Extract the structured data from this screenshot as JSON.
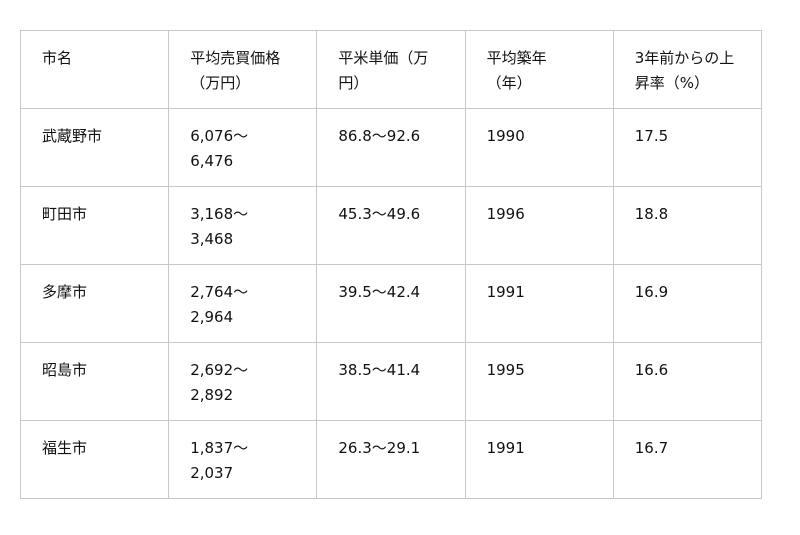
{
  "table": {
    "headers": [
      "市名",
      "平均売買価格\n（万円）",
      "平米単価（万\n円）",
      "平均築年\n（年）",
      "3年前からの上\n昇率（%）"
    ],
    "rows": [
      [
        "武蔵野市",
        "6,076～\n6,476",
        "86.8～92.6",
        "1990",
        "17.5"
      ],
      [
        "町田市",
        "3,168～\n3,468",
        "45.3～49.6",
        "1996",
        "18.8"
      ],
      [
        "多摩市",
        "2,764～\n2,964",
        "39.5～42.4",
        "1991",
        "16.9"
      ],
      [
        "昭島市",
        "2,692～\n2,892",
        "38.5～41.4",
        "1995",
        "16.6"
      ],
      [
        "福生市",
        "1,837～\n2,037",
        "26.3～29.1",
        "1991",
        "16.7"
      ]
    ]
  }
}
